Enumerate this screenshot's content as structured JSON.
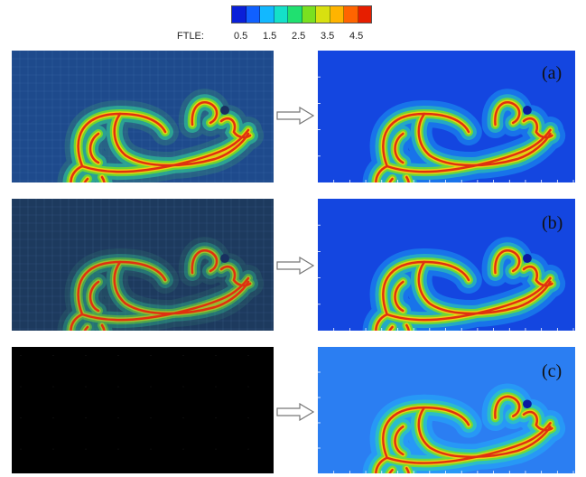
{
  "colorbar": {
    "label": "FTLE:",
    "ticks": [
      "0.5",
      "1.5",
      "2.5",
      "3.5",
      "4.5"
    ],
    "colors": [
      "#0a1fd8",
      "#1060ff",
      "#12b8ff",
      "#14e0c8",
      "#20e070",
      "#7ae020",
      "#d8e010",
      "#ffb400",
      "#ff6400",
      "#e61e00"
    ]
  },
  "panels": [
    {
      "tag": "(a)"
    },
    {
      "tag": "(b)"
    },
    {
      "tag": "(c)"
    }
  ],
  "colors": {
    "background_blue": "#1446e0",
    "left_a_bg": "#1e4a8c",
    "left_b_bg": "#1d3a5e",
    "left_c_bg": "#000000",
    "right_c_bg": "#2b7ef2"
  }
}
